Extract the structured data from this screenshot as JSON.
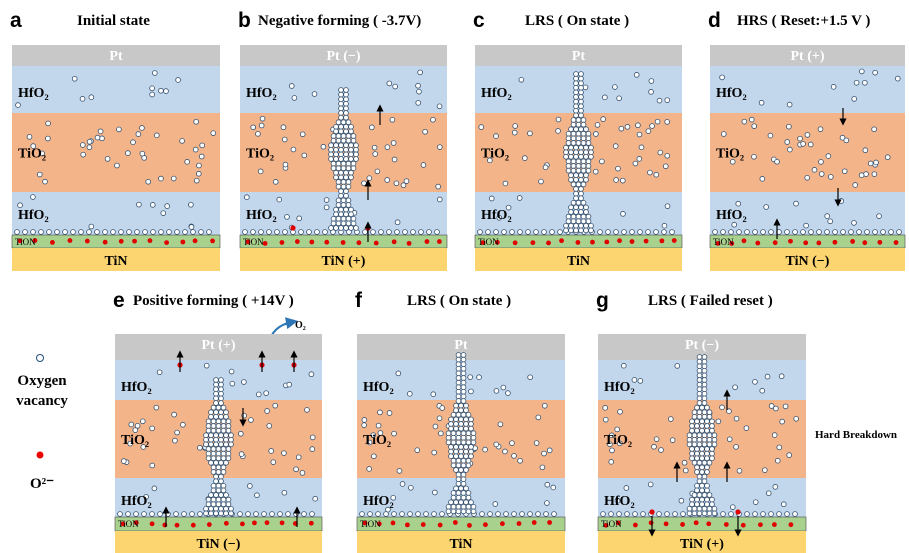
{
  "panels": [
    {
      "label": "a",
      "title": "Initial state",
      "top": "Pt",
      "hfo2_top": "HfO₂",
      "tio2": "TiO₂",
      "hfo2_bottom": "HfO₂",
      "tion": "TiON",
      "bottom": "TiN"
    },
    {
      "label": "b",
      "title": "Negative forming ( -3.7V)",
      "top": "Pt (−)",
      "hfo2_top": "HfO₂",
      "tio2": "TiO₂",
      "hfo2_bottom": "HfO₂",
      "tion": "TiON",
      "bottom": "TiN (+)"
    },
    {
      "label": "c",
      "title": "LRS ( On state )",
      "top": "Pt",
      "hfo2_top": "HfO₂",
      "tio2": "TiO₂",
      "hfo2_bottom": "HfO₂",
      "tion": "TiON",
      "bottom": "TiN"
    },
    {
      "label": "d",
      "title": "HRS ( Reset:+1.5 V )",
      "top": "Pt (+)",
      "hfo2_top": "HfO₂",
      "tio2": "TiO₂",
      "hfo2_bottom": "HfO₂",
      "tion": "TiON",
      "bottom": "TiN (−)"
    },
    {
      "label": "e",
      "title": "Positive forming ( +14V )",
      "top": "Pt (+)",
      "hfo2_top": "HfO₂",
      "tio2": "TiO₂",
      "hfo2_bottom": "HfO₂",
      "tion": "TiON",
      "bottom": "TiN (−)"
    },
    {
      "label": "f",
      "title": "LRS ( On state )",
      "top": "Pt",
      "hfo2_top": "HfO₂",
      "tio2": "TiO₂",
      "hfo2_bottom": "HfO₂",
      "tion": "TiON",
      "bottom": "TiN"
    },
    {
      "label": "g",
      "title": "LRS ( Failed reset )",
      "top": "Pt (−)",
      "hfo2_top": "HfO₂",
      "tio2": "TiO₂",
      "hfo2_bottom": "HfO₂",
      "tion": "TiON",
      "bottom": "TiN (+)"
    }
  ],
  "legend": {
    "vacancy": [
      "Oxygen",
      "vacancy"
    ],
    "ion": "O²⁻"
  },
  "annotations": {
    "o2": "O₂",
    "hard_breakdown": "Hard Breakdown"
  }
}
